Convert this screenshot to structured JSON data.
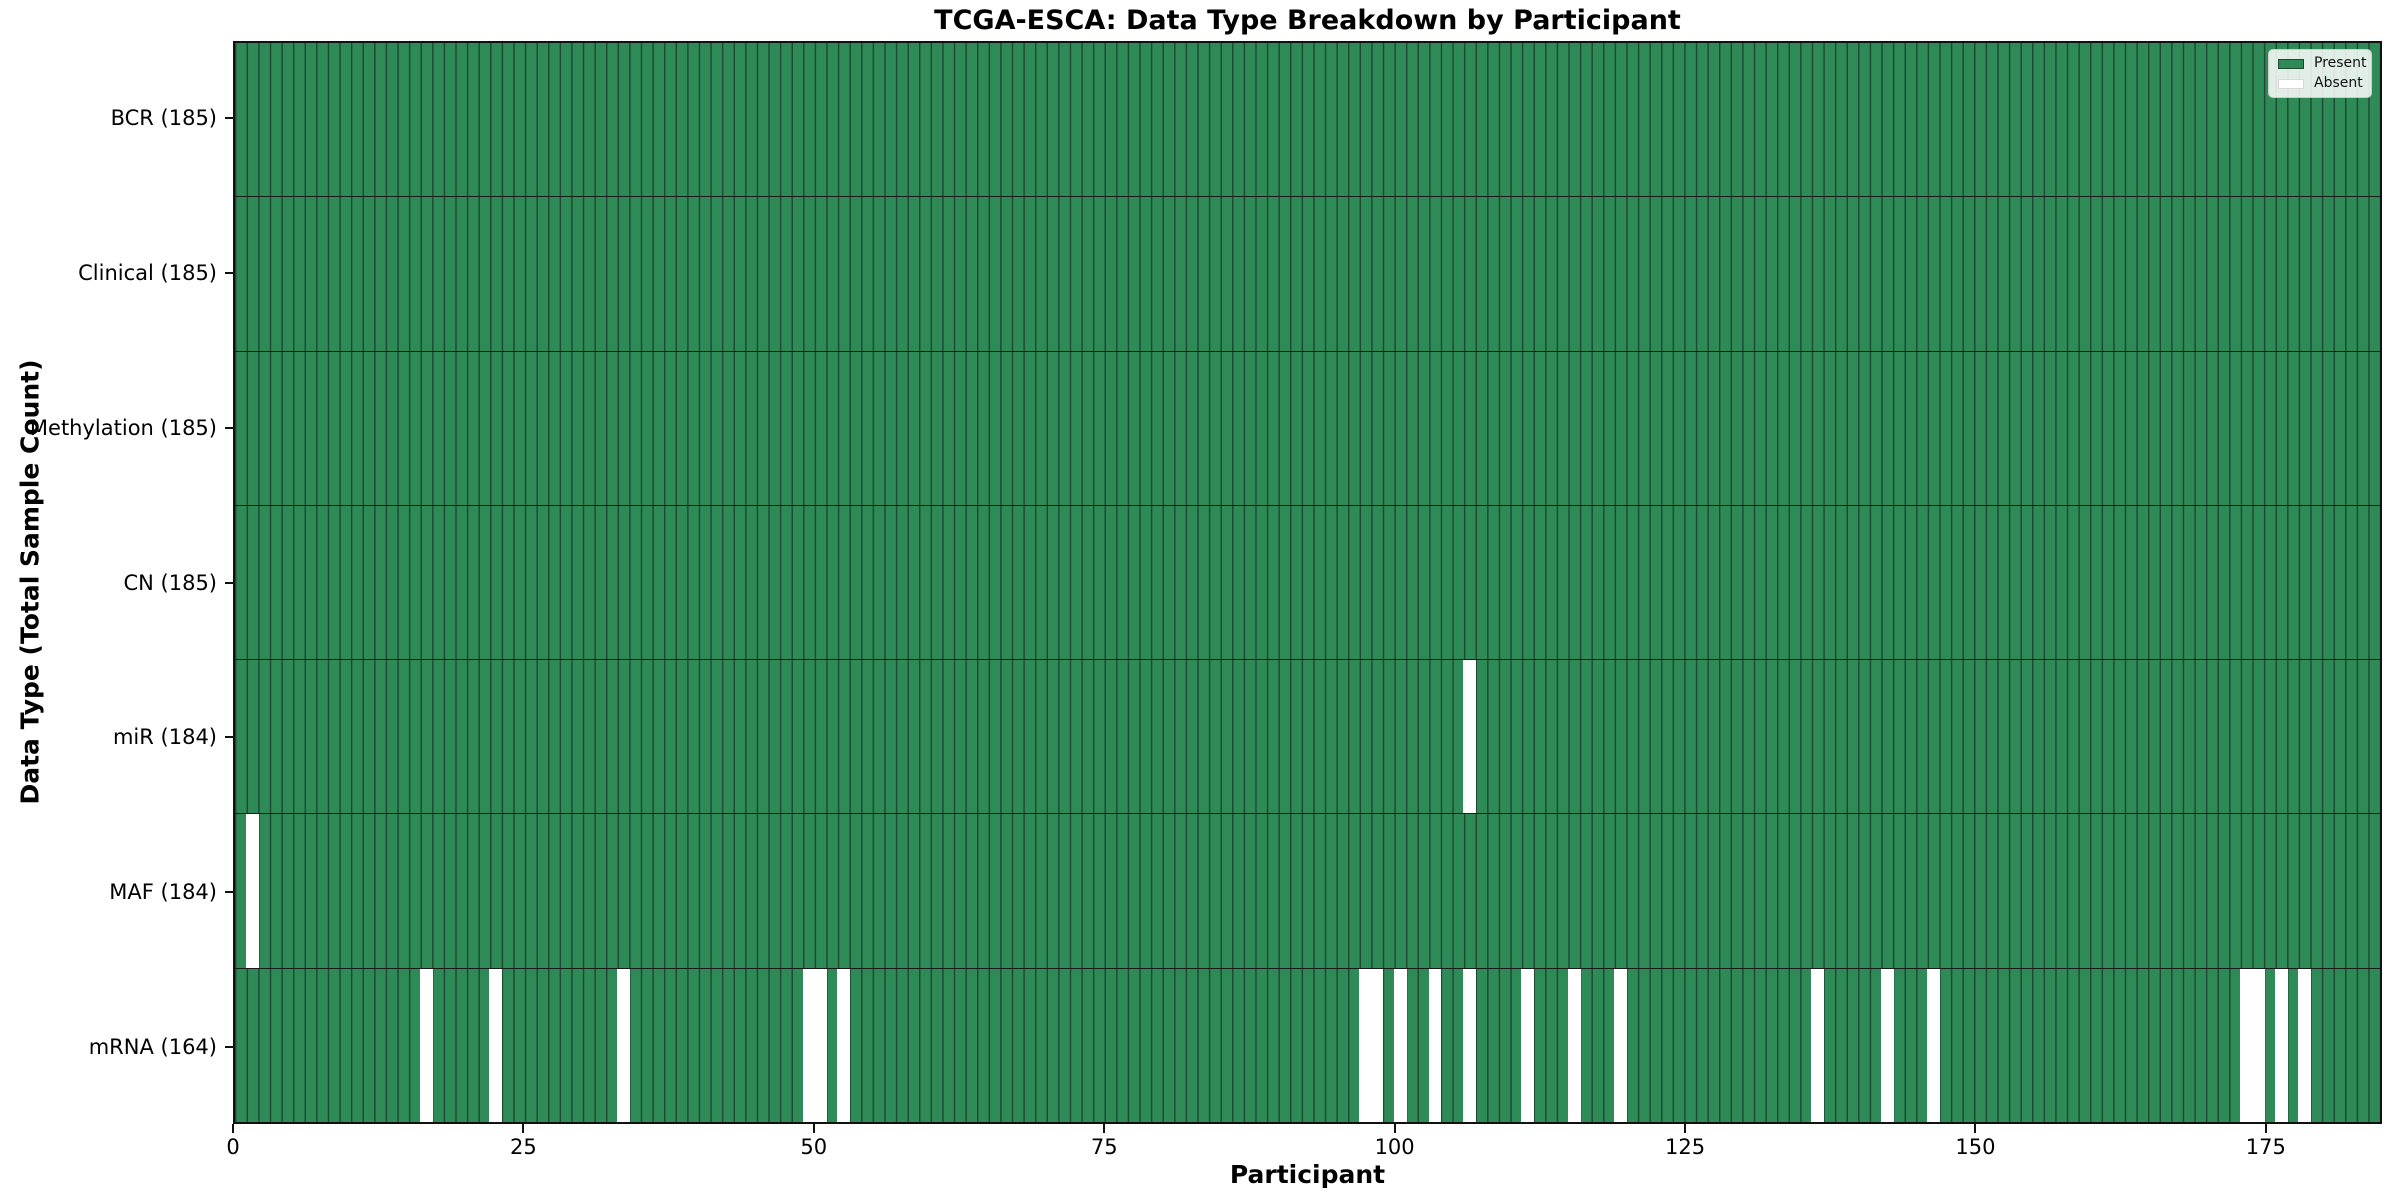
{
  "colors": {
    "present": "#2e8b57",
    "absent": "#ffffff",
    "bar_edge": "#1d4a30",
    "row_separator": "#1a1a1a",
    "plot_border": "#111111",
    "legend_border": "#cccccc",
    "legend_bg": "rgba(255,255,255,0.85)",
    "text": "#000000"
  },
  "chart_data": {
    "type": "heatmap",
    "title": "TCGA-ESCA: Data Type Breakdown by Participant",
    "xlabel": "Participant",
    "ylabel": "Data Type (Total Sample Count)",
    "n_participants": 185,
    "x_ticks": [
      0,
      25,
      50,
      75,
      100,
      125,
      150,
      175
    ],
    "x_range": [
      0,
      185
    ],
    "grid": false,
    "legend_position": "upper right",
    "legend_entries": [
      "Present",
      "Absent"
    ],
    "rows": [
      {
        "label": "BCR (185)",
        "data_type": "BCR",
        "total_samples": 185,
        "absent_participants": []
      },
      {
        "label": "Clinical (185)",
        "data_type": "Clinical",
        "total_samples": 185,
        "absent_participants": []
      },
      {
        "label": "Methylation (185)",
        "data_type": "Methylation",
        "total_samples": 185,
        "absent_participants": []
      },
      {
        "label": "CN (185)",
        "data_type": "CN",
        "total_samples": 185,
        "absent_participants": []
      },
      {
        "label": "miR (184)",
        "data_type": "miR",
        "total_samples": 184,
        "absent_participants": [
          107
        ]
      },
      {
        "label": "MAF (184)",
        "data_type": "MAF",
        "total_samples": 184,
        "absent_participants": [
          2
        ]
      },
      {
        "label": "mRNA (164)",
        "data_type": "mRNA",
        "total_samples": 164,
        "absent_participants": [
          17,
          23,
          34,
          50,
          51,
          53,
          98,
          99,
          101,
          104,
          107,
          112,
          116,
          120,
          137,
          143,
          147,
          174,
          175,
          177,
          179
        ]
      }
    ]
  }
}
